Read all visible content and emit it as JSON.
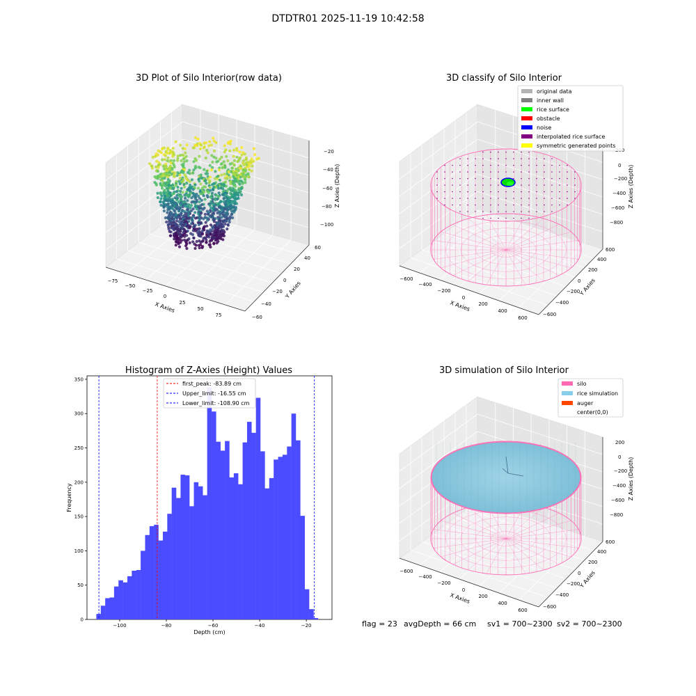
{
  "figure": {
    "suptitle": "DTDTR01 2025-11-19 10:42:58",
    "status_text": {
      "flag": "flag = 23",
      "avg_depth": "avgDepth = 66 cm",
      "sv1": "sv1 = 700~2300",
      "sv2": "sv2 = 700~2300"
    }
  },
  "chart_data": [
    {
      "type": "scatter",
      "projection": "3d",
      "title": "3D Plot of Silo Interior(row data)",
      "xlabel": "X Axies",
      "ylabel": "Y Axies",
      "zlabel": "Z Axies (Depth)",
      "x_ticks": [
        "−75",
        "−50",
        "−25",
        "0",
        "25",
        "50",
        "75"
      ],
      "y_ticks": [
        "−60",
        "−40",
        "−20",
        "0",
        "20",
        "40",
        "60"
      ],
      "z_ticks": [
        "−100",
        "−80",
        "−60",
        "−40",
        "−20"
      ],
      "xlim": [
        -90,
        90
      ],
      "ylim": [
        -60,
        60
      ],
      "zlim": [
        -120,
        -15
      ],
      "colormap": "viridis",
      "description_of_points": "point cloud of silo rice surface, depth −20 (yellow rim) to −115 (purple bottom)"
    },
    {
      "type": "scatter",
      "projection": "3d",
      "title": "3D classify of Silo Interior",
      "xlabel": "X Axies",
      "ylabel": "Y Axies",
      "zlabel": "Z Axies (Depth)",
      "x_ticks": [
        "−600",
        "−400",
        "−200",
        "0",
        "200",
        "400",
        "600"
      ],
      "y_ticks": [
        "−600",
        "−400",
        "−200",
        "0",
        "200",
        "400",
        "600"
      ],
      "z_ticks": [
        "−800",
        "−600",
        "−400",
        "−200",
        "0",
        "200"
      ],
      "legend": [
        {
          "label": "original data",
          "color": "#b3b3b3"
        },
        {
          "label": "inner wall",
          "color": "#808080"
        },
        {
          "label": "rice surface",
          "color": "#00ff00"
        },
        {
          "label": "obstacle",
          "color": "#ff0000"
        },
        {
          "label": "noise",
          "color": "#0000ff"
        },
        {
          "label": "interpolated rice surface",
          "color": "#800080"
        },
        {
          "label": "symmetric generated points",
          "color": "#ffff00"
        }
      ],
      "legend_position": "top-right",
      "silo_color": "#ff69b4"
    },
    {
      "type": "bar",
      "title": "Histogram of Z-Axies (Height) Values",
      "xlabel": "Depth (cm)",
      "ylabel": "Frequency",
      "xlim": [
        -114,
        -9
      ],
      "ylim": [
        0,
        355
      ],
      "x_ticks": [
        -100,
        -80,
        -60,
        -40,
        -20
      ],
      "x_tick_labels": [
        "−100",
        "−80",
        "−60",
        "−40",
        "−20"
      ],
      "y_ticks": [
        0,
        50,
        100,
        150,
        200,
        250,
        300,
        350
      ],
      "bar_color": "#4b4bff",
      "bin_start": -110.0,
      "bin_width": 1.9,
      "values": [
        8,
        20,
        31,
        32,
        48,
        57,
        54,
        63,
        71,
        72,
        100,
        123,
        136,
        138,
        115,
        128,
        154,
        192,
        177,
        211,
        210,
        165,
        200,
        194,
        181,
        338,
        303,
        259,
        246,
        260,
        207,
        213,
        197,
        258,
        288,
        272,
        323,
        245,
        191,
        206,
        233,
        237,
        240,
        252,
        300,
        261,
        151,
        44,
        15,
        2
      ],
      "vlines": [
        {
          "label": "first_peak: -83.89 cm",
          "x": -83.89,
          "color": "#ff0000"
        },
        {
          "label": "Upper_limit: -16.55 cm",
          "x": -16.55,
          "color": "#0000ff"
        },
        {
          "label": "Lower_limit: -108.90 cm",
          "x": -108.9,
          "color": "#0000ff"
        }
      ],
      "legend_position": "top-center"
    },
    {
      "type": "surface",
      "projection": "3d",
      "title": "3D simulation of Silo Interior",
      "xlabel": "X Axies",
      "ylabel": "Y Axies",
      "zlabel": "Z Axies (Depth)",
      "x_ticks": [
        "−600",
        "−400",
        "−200",
        "0",
        "200",
        "400",
        "600"
      ],
      "y_ticks": [
        "−600",
        "−400",
        "−200",
        "0",
        "200",
        "400",
        "600"
      ],
      "z_ticks": [
        "−800",
        "−600",
        "−400",
        "−200",
        "0",
        "200"
      ],
      "legend": [
        {
          "label": "silo",
          "color": "#ff69b4"
        },
        {
          "label": "rice simulation",
          "color": "#87ceeb"
        },
        {
          "label": "auger",
          "color": "#ff4500"
        },
        {
          "label": "center(0,0)",
          "color": "#ffffff"
        }
      ],
      "legend_position": "top-right"
    }
  ]
}
